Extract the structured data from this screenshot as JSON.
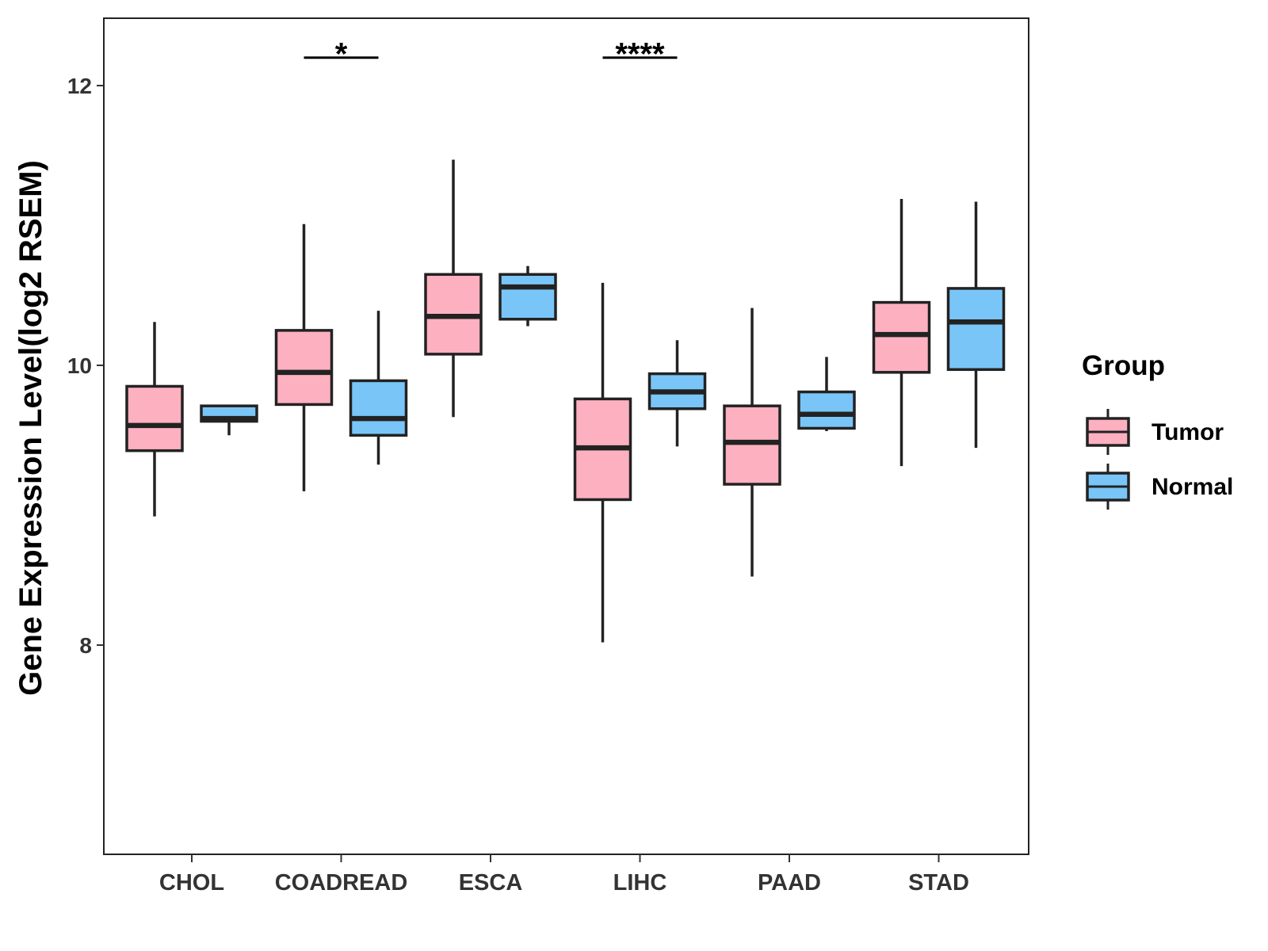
{
  "chart_data": {
    "type": "boxplot",
    "title": "",
    "xlabel": "",
    "ylabel": "Gene Expression Level(log2 RSEM)",
    "yticks": [
      8,
      10,
      12
    ],
    "ylim": [
      6.5,
      12.5
    ],
    "categories": [
      "CHOL",
      "COADREAD",
      "ESCA",
      "LIHC",
      "PAAD",
      "STAD"
    ],
    "grid": false,
    "legend": {
      "title": "Group",
      "position": "right",
      "entries": [
        "Tumor",
        "Normal"
      ]
    },
    "colors": {
      "Tumor": "#FDB0C0",
      "Normal": "#7AC5F8",
      "outline": "#222222"
    },
    "series": [
      {
        "name": "Tumor",
        "boxes": [
          {
            "category": "CHOL",
            "whisker_low": 8.92,
            "q1": 9.39,
            "median": 9.57,
            "q3": 9.85,
            "whisker_high": 10.31
          },
          {
            "category": "COADREAD",
            "whisker_low": 9.1,
            "q1": 9.72,
            "median": 9.95,
            "q3": 10.25,
            "whisker_high": 11.01
          },
          {
            "category": "ESCA",
            "whisker_low": 9.63,
            "q1": 10.08,
            "median": 10.35,
            "q3": 10.65,
            "whisker_high": 11.47
          },
          {
            "category": "LIHC",
            "whisker_low": 8.02,
            "q1": 9.04,
            "median": 9.41,
            "q3": 9.76,
            "whisker_high": 10.59
          },
          {
            "category": "PAAD",
            "whisker_low": 8.49,
            "q1": 9.15,
            "median": 9.45,
            "q3": 9.71,
            "whisker_high": 10.41
          },
          {
            "category": "STAD",
            "whisker_low": 9.28,
            "q1": 9.95,
            "median": 10.22,
            "q3": 10.45,
            "whisker_high": 11.19
          }
        ]
      },
      {
        "name": "Normal",
        "boxes": [
          {
            "category": "CHOL",
            "whisker_low": 9.5,
            "q1": 9.6,
            "median": 9.62,
            "q3": 9.71,
            "whisker_high": 9.71
          },
          {
            "category": "COADREAD",
            "whisker_low": 9.29,
            "q1": 9.5,
            "median": 9.62,
            "q3": 9.89,
            "whisker_high": 10.39
          },
          {
            "category": "ESCA",
            "whisker_low": 10.28,
            "q1": 10.33,
            "median": 10.56,
            "q3": 10.65,
            "whisker_high": 10.71
          },
          {
            "category": "LIHC",
            "whisker_low": 9.42,
            "q1": 9.69,
            "median": 9.81,
            "q3": 9.94,
            "whisker_high": 10.18
          },
          {
            "category": "PAAD",
            "whisker_low": 9.53,
            "q1": 9.55,
            "median": 9.65,
            "q3": 9.81,
            "whisker_high": 10.06
          },
          {
            "category": "STAD",
            "whisker_low": 9.41,
            "q1": 9.97,
            "median": 10.31,
            "q3": 10.55,
            "whisker_high": 11.17
          }
        ]
      }
    ],
    "annotations": [
      {
        "category": "COADREAD",
        "label": "*",
        "y": 12.2
      },
      {
        "category": "LIHC",
        "label": "****",
        "y": 12.2
      }
    ]
  }
}
